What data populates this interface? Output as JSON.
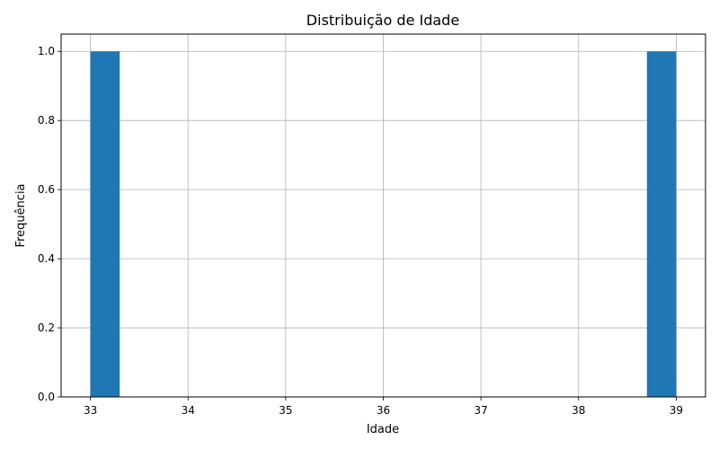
{
  "chart_data": {
    "type": "bar",
    "title": "Distribuição de Idade",
    "xlabel": "Idade",
    "ylabel": "Frequência",
    "xlim": [
      32.7,
      39.3
    ],
    "ylim": [
      0,
      1.05
    ],
    "x_ticks": [
      "33",
      "34",
      "35",
      "36",
      "37",
      "38",
      "39"
    ],
    "y_ticks": [
      "0.0",
      "0.2",
      "0.4",
      "0.6",
      "0.8",
      "1.0"
    ],
    "grid": true,
    "bar_color": "#1f77b4",
    "series": [
      {
        "bins": [
          {
            "x0": 33.0,
            "x1": 33.3,
            "value": 1
          },
          {
            "x0": 38.7,
            "x1": 39.0,
            "value": 1
          }
        ]
      }
    ]
  }
}
